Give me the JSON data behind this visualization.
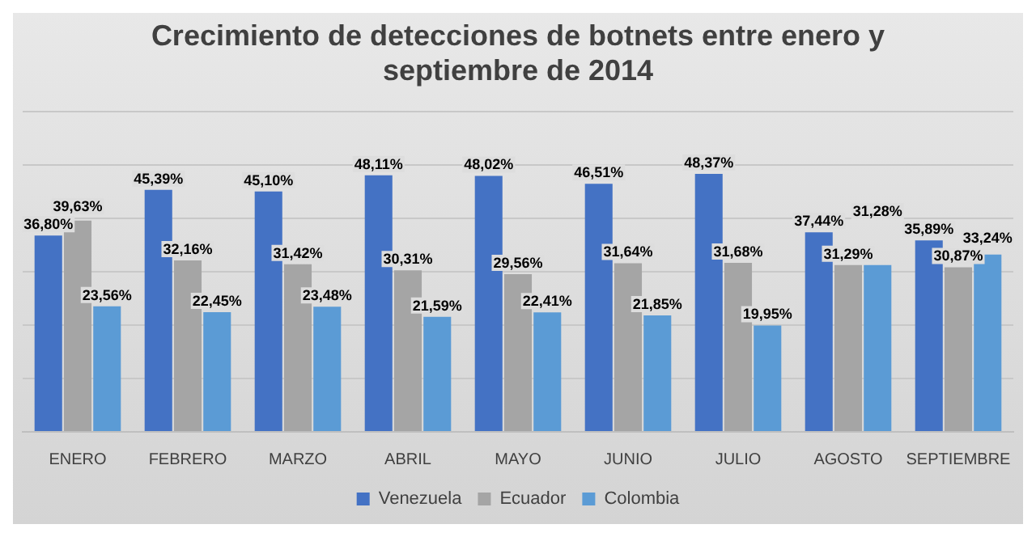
{
  "chart_data": {
    "type": "bar",
    "title": "Crecimiento de detecciones de botnets entre enero y septiembre de 2014",
    "categories": [
      "ENERO",
      "FEBRERO",
      "MARZO",
      "ABRIL",
      "MAYO",
      "JUNIO",
      "JULIO",
      "AGOSTO",
      "SEPTIEMBRE"
    ],
    "series": [
      {
        "name": "Venezuela",
        "color": "#4472c4",
        "values": [
          36.8,
          45.39,
          45.1,
          48.11,
          48.02,
          46.51,
          48.37,
          37.44,
          35.89
        ],
        "value_labels": [
          "36,80%",
          "45,39%",
          "45,10%",
          "48,11%",
          "48,02%",
          "46,51%",
          "48,37%",
          "37,44%",
          "35,89%"
        ]
      },
      {
        "name": "Ecuador",
        "color": "#a5a5a5",
        "values": [
          39.63,
          32.16,
          31.42,
          30.31,
          29.56,
          31.64,
          31.68,
          31.29,
          30.87
        ],
        "value_labels": [
          "39,63%",
          "32,16%",
          "31,42%",
          "30,31%",
          "29,56%",
          "31,64%",
          "31,68%",
          "31,29%",
          "30,87%"
        ]
      },
      {
        "name": "Colombia",
        "color": "#5b9bd5",
        "values": [
          23.56,
          22.45,
          23.48,
          21.59,
          22.41,
          21.85,
          19.95,
          31.28,
          33.24
        ],
        "value_labels": [
          "23,56%",
          "22,45%",
          "23,48%",
          "21,59%",
          "22,41%",
          "21,85%",
          "19,95%",
          "31,28%",
          "33,24%"
        ]
      }
    ],
    "ylim": [
      0,
      60
    ],
    "yticks": [
      {
        "value": 0,
        "label": null
      },
      {
        "value": 10,
        "label": null
      },
      {
        "value": 20,
        "label": null
      },
      {
        "value": 30,
        "label": null
      },
      {
        "value": 40,
        "label": null
      },
      {
        "value": 50,
        "label": null
      },
      {
        "value": 60,
        "label": null
      }
    ],
    "grid": "y",
    "legend": "bottom",
    "tick_labels": "x"
  }
}
